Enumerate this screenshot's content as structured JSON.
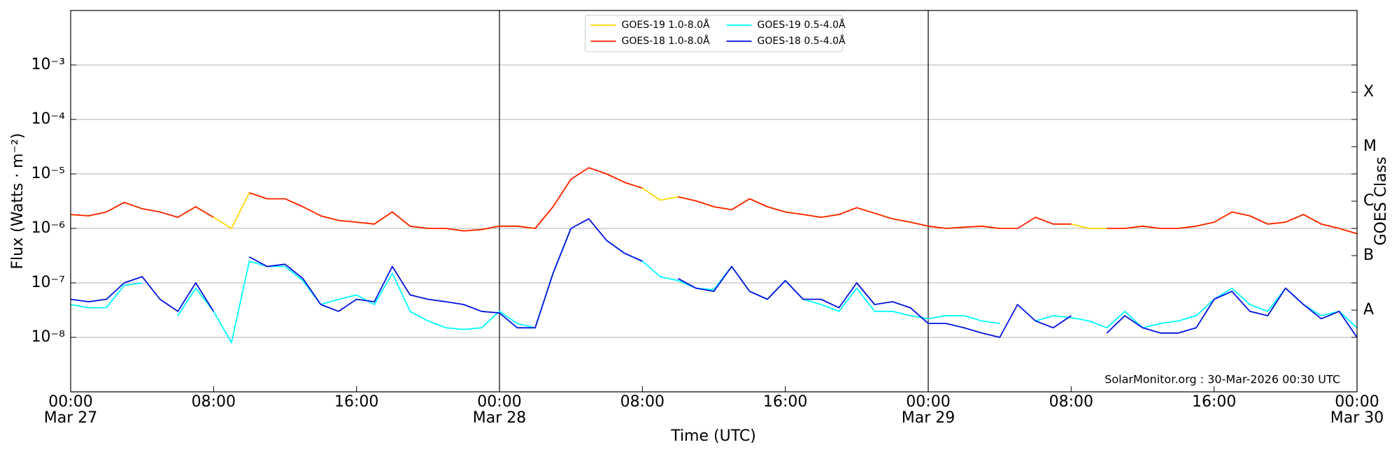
{
  "chart_data": {
    "type": "line",
    "x_label": "Time (UTC)",
    "y_label": "Flux (Watts · m⁻²)",
    "y2_label": "GOES Class",
    "annotation": "SolarMonitor.org : 30-Mar-2026 00:30 UTC",
    "log_scale": true,
    "grid": true,
    "legend_position": "upper center",
    "xlim": [
      0,
      72
    ],
    "xticks": [
      {
        "value": 0,
        "label": "00:00"
      },
      {
        "value": 8,
        "label": "08:00"
      },
      {
        "value": 16,
        "label": "16:00"
      },
      {
        "value": 24,
        "label": "00:00"
      },
      {
        "value": 32,
        "label": "08:00"
      },
      {
        "value": 40,
        "label": "16:00"
      },
      {
        "value": 48,
        "label": "00:00"
      },
      {
        "value": 56,
        "label": "08:00"
      },
      {
        "value": 64,
        "label": "16:00"
      },
      {
        "value": 72,
        "label": "00:00"
      }
    ],
    "x_dates": [
      {
        "value": 0,
        "label": "Mar 27"
      },
      {
        "value": 24,
        "label": "Mar 28"
      },
      {
        "value": 48,
        "label": "Mar 29"
      },
      {
        "value": 72,
        "label": "Mar 30"
      }
    ],
    "ylim": [
      1e-09,
      0.01
    ],
    "yticks": [
      {
        "value": 1e-08,
        "label": "10⁻⁸"
      },
      {
        "value": 1e-07,
        "label": "10⁻⁷"
      },
      {
        "value": 1e-06,
        "label": "10⁻⁶"
      },
      {
        "value": 1e-05,
        "label": "10⁻⁵"
      },
      {
        "value": 0.0001,
        "label": "10⁻⁴"
      },
      {
        "value": 0.001,
        "label": "10⁻³"
      }
    ],
    "y2lim": [
      1e-09,
      0.01
    ],
    "y2ticks": [
      {
        "value": 3.16e-08,
        "label": "A"
      },
      {
        "value": 3.16e-07,
        "label": "B"
      },
      {
        "value": 3.16e-06,
        "label": "C"
      },
      {
        "value": 3.16e-05,
        "label": "M"
      },
      {
        "value": 0.000316,
        "label": "X"
      }
    ],
    "x": [
      0,
      1,
      2,
      3,
      4,
      5,
      6,
      7,
      8,
      9,
      10,
      11,
      12,
      13,
      14,
      15,
      16,
      17,
      18,
      19,
      20,
      21,
      22,
      23,
      24,
      25,
      26,
      27,
      28,
      29,
      30,
      31,
      32,
      33,
      34,
      35,
      36,
      37,
      38,
      39,
      40,
      41,
      42,
      43,
      44,
      45,
      46,
      47,
      48,
      49,
      50,
      51,
      52,
      53,
      54,
      55,
      56,
      57,
      58,
      59,
      60,
      61,
      62,
      63,
      64,
      65,
      66,
      67,
      68,
      69,
      70,
      71,
      72
    ],
    "series": [
      {
        "name": "GOES-19 1.0-8.0Å",
        "color": "#ffd700",
        "values": [
          1.8e-06,
          1.7e-06,
          2e-06,
          3e-06,
          2.3e-06,
          null,
          1.6e-06,
          2.5e-06,
          1.6e-06,
          1e-06,
          4.5e-06,
          3.5e-06,
          3.5e-06,
          2.5e-06,
          1.7e-06,
          1.4e-06,
          1.3e-06,
          1.2e-06,
          2e-06,
          1.1e-06,
          1e-06,
          1e-06,
          9e-07,
          9.5e-07,
          1.1e-06,
          1.1e-06,
          1e-06,
          2.5e-06,
          8e-06,
          null,
          1e-05,
          7e-06,
          5.5e-06,
          3.3e-06,
          3.8e-06,
          3.2e-06,
          2.5e-06,
          2.2e-06,
          3.5e-06,
          2.5e-06,
          2e-06,
          1.8e-06,
          1.6e-06,
          1.8e-06,
          2.4e-06,
          1.9e-06,
          1.5e-06,
          1.3e-06,
          1.1e-06,
          1e-06,
          1.05e-06,
          1.1e-06,
          1e-06,
          null,
          1.6e-06,
          1.2e-06,
          1.2e-06,
          1e-06,
          1e-06,
          1e-06,
          1.1e-06,
          1e-06,
          1e-06,
          1.1e-06,
          1.3e-06,
          2e-06,
          1.7e-06,
          1.2e-06,
          1.3e-06,
          1.8e-06,
          1.2e-06,
          1e-06,
          8e-07
        ]
      },
      {
        "name": "GOES-18 1.0-8.0Å",
        "color": "#ff2000",
        "values": [
          1.8e-06,
          1.7e-06,
          2e-06,
          3e-06,
          2.3e-06,
          2e-06,
          1.6e-06,
          2.5e-06,
          1.6e-06,
          null,
          4.5e-06,
          3.5e-06,
          3.5e-06,
          2.5e-06,
          1.7e-06,
          1.4e-06,
          1.3e-06,
          1.2e-06,
          2e-06,
          1.1e-06,
          1e-06,
          1e-06,
          9e-07,
          9.5e-07,
          1.1e-06,
          1.1e-06,
          1e-06,
          2.5e-06,
          8e-06,
          1.3e-05,
          1e-05,
          7e-06,
          5.5e-06,
          null,
          3.8e-06,
          3.2e-06,
          2.5e-06,
          2.2e-06,
          3.5e-06,
          2.5e-06,
          2e-06,
          1.8e-06,
          1.6e-06,
          1.8e-06,
          2.4e-06,
          1.9e-06,
          1.5e-06,
          1.3e-06,
          1.1e-06,
          1e-06,
          1.05e-06,
          1.1e-06,
          1e-06,
          1e-06,
          1.6e-06,
          1.2e-06,
          1.2e-06,
          null,
          1e-06,
          1e-06,
          1.1e-06,
          1e-06,
          1e-06,
          1.1e-06,
          1.3e-06,
          2e-06,
          1.7e-06,
          1.2e-06,
          1.3e-06,
          1.8e-06,
          1.2e-06,
          1e-06,
          8e-07
        ]
      },
      {
        "name": "GOES-19 0.5-4.0Å",
        "color": "#00ffff",
        "values": [
          4e-08,
          3.5e-08,
          3.5e-08,
          9e-08,
          1e-07,
          null,
          2.5e-08,
          8e-08,
          3e-08,
          8e-09,
          2.5e-07,
          2e-07,
          2e-07,
          1.1e-07,
          4e-08,
          5e-08,
          6e-08,
          4e-08,
          1.5e-07,
          3e-08,
          2e-08,
          1.5e-08,
          1.4e-08,
          1.5e-08,
          3e-08,
          1.8e-08,
          1.5e-08,
          1.5e-07,
          1e-06,
          null,
          6e-07,
          3.5e-07,
          2.5e-07,
          1.3e-07,
          1.1e-07,
          8e-08,
          7.5e-08,
          2e-07,
          7e-08,
          5e-08,
          1.1e-07,
          5e-08,
          4e-08,
          3e-08,
          8e-08,
          3e-08,
          3e-08,
          2.5e-08,
          2.2e-08,
          2.5e-08,
          2.5e-08,
          2e-08,
          1.8e-08,
          null,
          2e-08,
          2.5e-08,
          2.3e-08,
          2e-08,
          1.5e-08,
          3e-08,
          1.5e-08,
          1.8e-08,
          2e-08,
          2.5e-08,
          5e-08,
          8e-08,
          4e-08,
          3e-08,
          8e-08,
          4e-08,
          2.5e-08,
          3e-08,
          1.5e-08
        ]
      },
      {
        "name": "GOES-18 0.5-4.0Å",
        "color": "#0010e0",
        "values": [
          5e-08,
          4.5e-08,
          5e-08,
          1e-07,
          1.3e-07,
          5e-08,
          3e-08,
          1e-07,
          3e-08,
          null,
          3e-07,
          2e-07,
          2.2e-07,
          1.2e-07,
          4e-08,
          3e-08,
          5e-08,
          4.5e-08,
          2e-07,
          6e-08,
          5e-08,
          4.5e-08,
          4e-08,
          3e-08,
          2.8e-08,
          1.5e-08,
          1.5e-08,
          1.5e-07,
          1e-06,
          1.5e-06,
          6e-07,
          3.5e-07,
          2.5e-07,
          null,
          1.2e-07,
          8e-08,
          7e-08,
          2e-07,
          7e-08,
          5e-08,
          1.1e-07,
          5e-08,
          5e-08,
          3.5e-08,
          1e-07,
          4e-08,
          4.5e-08,
          3.5e-08,
          1.8e-08,
          1.8e-08,
          1.5e-08,
          1.2e-08,
          1e-08,
          4e-08,
          2e-08,
          1.5e-08,
          2.5e-08,
          null,
          1.2e-08,
          2.5e-08,
          1.5e-08,
          1.2e-08,
          1.2e-08,
          1.5e-08,
          5e-08,
          7e-08,
          3e-08,
          2.5e-08,
          8e-08,
          4e-08,
          2.2e-08,
          3e-08,
          1e-08
        ]
      }
    ]
  }
}
